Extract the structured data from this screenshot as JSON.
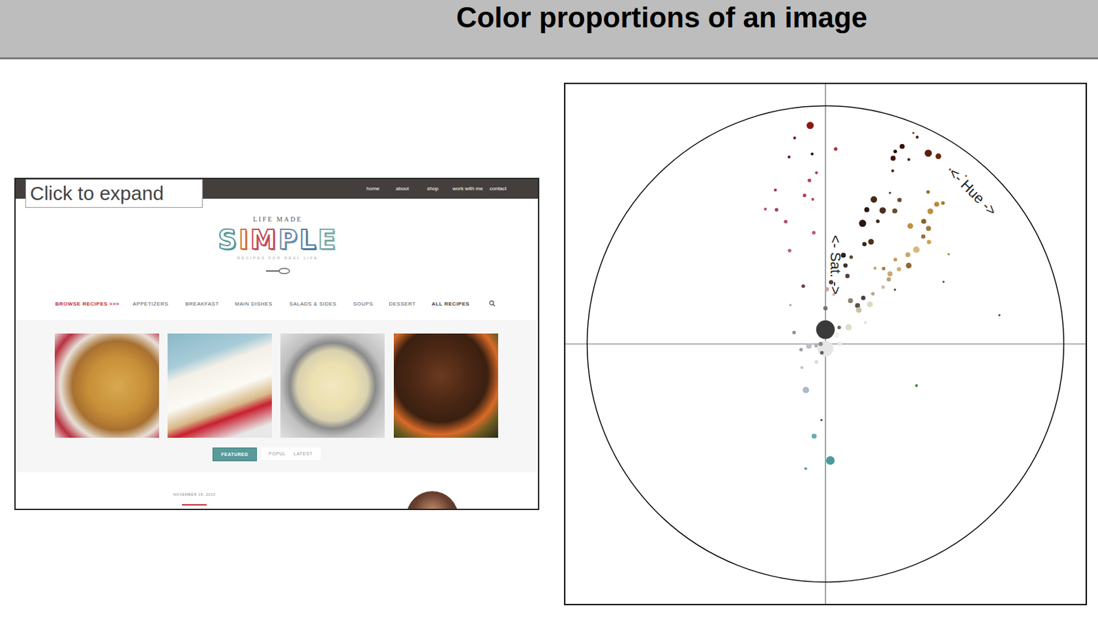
{
  "header": {
    "title": "Color proportions of an image"
  },
  "screenshot": {
    "button": "Click to expand",
    "nav": [
      "home",
      "about",
      "shop",
      "work with me",
      "contact"
    ],
    "logo_top": "LIFE MADE",
    "logo": "SIMPLE",
    "logo_sub": "RECIPES FOR REAL LIFE",
    "menu": [
      "BROWSE RECIPES >>>",
      "APPETIZERS",
      "BREAKFAST",
      "MAIN DISHES",
      "SALADS & SIDES",
      "SOUPS",
      "DESSERT",
      "ALL RECIPES"
    ],
    "tabs": [
      "FEATURED",
      "POPULAR",
      "LATEST"
    ],
    "date": "NOVEMBER 18, 2020"
  },
  "chart_data": {
    "type": "polar_scatter",
    "theta_label": "<- Hue ->",
    "r_label": "<- Sat. ->",
    "rlim": [
      0,
      1
    ],
    "thetalim": [
      0,
      360
    ],
    "tick_labels": false,
    "grid": false,
    "theta": [
      0,
      180,
      356,
      351.5,
      356,
      3,
      349,
      357,
      354.4,
      342,
      352,
      355,
      336,
      340,
      342,
      354,
      339,
      339,
      318,
      290,
      257,
      225,
      203,
      183,
      187,
      189,
      177.6,
      114.6,
      80.6,
      62.2,
      53.9,
      39.9,
      35.5,
      31,
      28.3,
      23.9,
      22.6,
      21.2,
      19.9,
      24.3,
      20,
      21.2,
      18.5,
      23.1,
      27.2,
      34,
      38.5,
      39.8,
      38.3,
      17.1,
      23.2,
      27.5,
      23.1,
      17.1,
      38.7,
      41.7,
      35.7,
      24,
      21.3,
      42.3,
      45.4,
      43.9,
      42.7,
      11.4,
      16.5,
      39.6,
      46.7,
      33.2,
      37.6,
      44.5,
      14.3,
      42.6,
      44.4,
      52,
      17.9,
      5.2,
      45.4,
      43.4,
      1.5,
      9.5,
      39.4,
      30,
      48.3,
      39.9,
      44.4,
      0,
      61.9,
      54.3,
      39.8,
      90,
      270,
      51,
      259,
      263,
      206.6,
      202
    ],
    "r": [
      0.06,
      0.02,
      0.92,
      0.875,
      0.8,
      0.82,
      0.8,
      0.72,
      0.69,
      0.68,
      0.63,
      0.61,
      0.62,
      0.6,
      0.54,
      0.47,
      0.42,
      0.26,
      0.22,
      0.14,
      0.105,
      0.14,
      0.21,
      0.32,
      0.39,
      0.53,
      0.49,
      0.42,
      0.74,
      0.56,
      0.64,
      0.92,
      0.9,
      0.92,
      0.91,
      0.95,
      0.96,
      0.89,
      0.86,
      0.85,
      0.83,
      0.78,
      0.64,
      0.69,
      0.68,
      0.77,
      0.75,
      0.77,
      0.71,
      0.59,
      0.61,
      0.63,
      0.56,
      0.53,
      0.66,
      0.65,
      0.61,
      0.47,
      0.45,
      0.61,
      0.61,
      0.55,
      0.51,
      0.38,
      0.38,
      0.46,
      0.48,
      0.38,
      0.4,
      0.44,
      0.34,
      0.4,
      0.38,
      0.37,
      0.3,
      0.26,
      0.34,
      0.29,
      0.23,
      0.21,
      0.25,
      0.21,
      0.25,
      0.21,
      0.2,
      0.15,
      0.19,
      0.12,
      0.09,
      0.06,
      0.02,
      0.06,
      0.04,
      0.07,
      0.085,
      0.04
    ],
    "colors": [
      "#3a3a3a",
      "#e6e6e6",
      "#8b1a1a",
      "#7a1a2a",
      "#2a1010",
      "#b03040",
      "#6a1a2a",
      "#b04050",
      "#c04050",
      "#a02a50",
      "#c03a50",
      "#b04a5a",
      "#c04a70",
      "#a0406a",
      "#b05070",
      "#c05a6a",
      "#c06080",
      "#7a3a48",
      "#c090a8",
      "#9a8aa0",
      "#a0a0b0",
      "#c0c0d0",
      "#a8bccc",
      "#304048",
      "#6aaab8",
      "#5a9ab8",
      "#4a9aa0",
      "#3a8a3a",
      "#3a4a2a",
      "#4a5a2a",
      "#a08030",
      "#a06020",
      "#8a4a10",
      "#6a2a08",
      "#5a2008",
      "#4a1808",
      "#6a3a18",
      "#3a1008",
      "#2a0a04",
      "#4a1a0a",
      "#3a1208",
      "#5a2a10",
      "#4a2810",
      "#3a2010",
      "#6a4a28",
      "#a07030",
      "#b8883a",
      "#a07828",
      "#c09040",
      "#2a1810",
      "#4a3020",
      "#6a4a30",
      "#3a2818",
      "#2a1810",
      "#8a6028",
      "#a07a40",
      "#c09048",
      "#4a3020",
      "#3a2418",
      "#9a7038",
      "#d0a050",
      "#d8b880",
      "#c8a868",
      "#2a2020",
      "#5a4838",
      "#c09850",
      "#8a6a38",
      "#c0a070",
      "#a08048",
      "#d0b070",
      "#3a3030",
      "#c8a870",
      "#b8a070",
      "#4a3a28",
      "#5a3a3a",
      "#5a3a3a",
      "#d0c0a0",
      "#b8a888",
      "#d0a0a0",
      "#e0b0b8",
      "#4a4038",
      "#8a8070",
      "#e0d8c0",
      "#5a5048",
      "#c8c0a8",
      "#7a7070",
      "#e8e0c8",
      "#e0dcc8",
      "#6a6460",
      "#e8e8e0",
      "#8a8a8a",
      "#f0f0f0",
      "#b0b0b8",
      "#c0c0c8",
      "#d8d8e0",
      "#606060"
    ],
    "size": [
      26,
      22,
      10,
      4,
      4,
      5,
      4,
      4,
      5,
      4,
      5,
      4,
      4,
      5,
      5,
      5,
      5,
      5,
      3,
      5,
      5,
      4,
      9,
      3,
      7,
      4,
      12,
      4,
      3,
      3,
      3,
      3,
      3,
      8,
      10,
      4,
      3,
      7,
      5,
      4,
      7,
      4,
      9,
      3,
      6,
      5,
      7,
      5,
      8,
      7,
      9,
      7,
      5,
      10,
      7,
      7,
      8,
      8,
      6,
      6,
      6,
      9,
      7,
      7,
      5,
      5,
      8,
      4,
      5,
      6,
      6,
      7,
      6,
      3,
      6,
      6,
      5,
      5,
      6,
      4,
      6,
      7,
      8,
      7,
      8,
      6,
      4,
      9,
      5,
      6,
      6,
      8,
      5,
      8,
      5,
      5
    ]
  }
}
